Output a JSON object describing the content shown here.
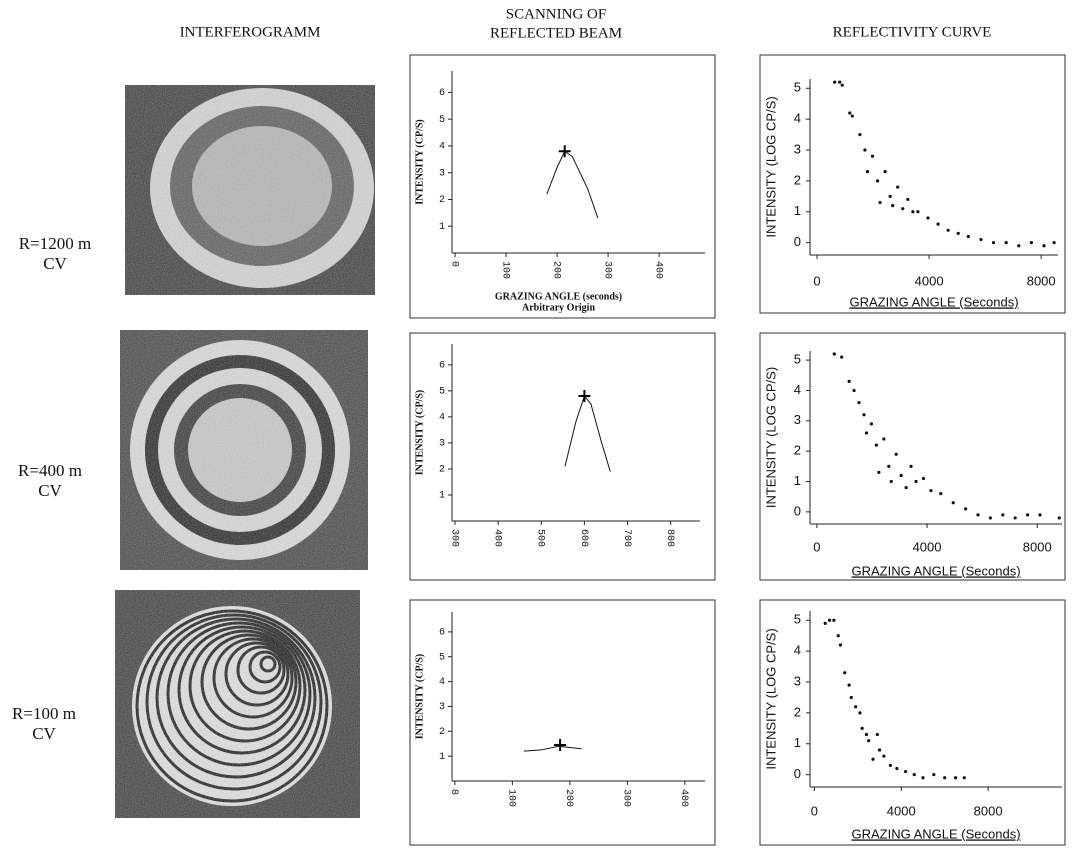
{
  "column_headers": [
    "INTERFEROGRAMM",
    "SCANNING OF",
    "REFLECTED BEAM",
    "REFLECTIVITY CURVE"
  ],
  "row_labels": [
    [
      "R=1200 m",
      "CV"
    ],
    [
      "R=400 m",
      "CV"
    ],
    [
      "R=100 m",
      "CV"
    ]
  ],
  "chart_data": [
    {
      "type": "line",
      "y_label": "INTENSITY (CP/S)",
      "x_label": "GRAZING ANGLE (seconds)",
      "subtitle": "Arbitrary Origin",
      "x": [
        180,
        200,
        215,
        230,
        260,
        280
      ],
      "values": [
        2.2,
        3.2,
        3.8,
        3.6,
        2.4,
        1.3
      ],
      "marker_x": 215,
      "marker_y": 3.8,
      "xlim": [
        -6,
        490
      ],
      "ylim": [
        0,
        6.8
      ],
      "xticks": [
        0,
        100,
        200,
        300,
        400
      ],
      "yticks": [
        1,
        2,
        3,
        4,
        5,
        6
      ]
    },
    {
      "type": "scatter",
      "y_label": "INTENSITY (LOG CP/S)",
      "x_label": "GRAZING ANGLE (Seconds)",
      "x": [
        630,
        810,
        900,
        1170,
        1260,
        1530,
        1710,
        1800,
        1980,
        2160,
        2250,
        2430,
        2610,
        2700,
        2880,
        3060,
        3240,
        3420,
        3600,
        3960,
        4320,
        4680,
        5040,
        5400,
        5850,
        6300,
        6750,
        7200,
        7650,
        8100,
        8460
      ],
      "values": [
        5.2,
        5.2,
        5.1,
        4.2,
        4.1,
        3.5,
        3.0,
        2.3,
        2.8,
        2.0,
        1.3,
        2.3,
        1.5,
        1.2,
        1.8,
        1.1,
        1.4,
        1.0,
        1.0,
        0.8,
        0.6,
        0.4,
        0.3,
        0.2,
        0.1,
        0.0,
        0.0,
        -0.1,
        0.0,
        -0.1,
        0.0
      ],
      "xlim": [
        -250,
        8600
      ],
      "ylim": [
        -0.4,
        5.3
      ],
      "xticks": [
        0,
        4000,
        8000
      ],
      "yticks": [
        0,
        1,
        2,
        3,
        4,
        5
      ]
    },
    {
      "type": "line",
      "y_label": "INTENSITY (CP/S)",
      "x": [
        555,
        580,
        600,
        615,
        640,
        660
      ],
      "values": [
        2.1,
        3.8,
        4.8,
        4.5,
        3.0,
        1.9
      ],
      "marker_x": 600,
      "marker_y": 4.8,
      "xlim": [
        293,
        868
      ],
      "ylim": [
        0,
        6.8
      ],
      "xticks": [
        300,
        400,
        500,
        600,
        700,
        800
      ],
      "yticks": [
        1,
        2,
        3,
        4,
        5,
        6
      ]
    },
    {
      "type": "scatter",
      "y_label": "INTENSITY (LOG CP/S)",
      "x_label": "GRAZING ANGLE (Seconds)",
      "x": [
        630,
        900,
        1170,
        1350,
        1530,
        1710,
        1800,
        1980,
        2160,
        2250,
        2430,
        2610,
        2700,
        2880,
        3060,
        3240,
        3420,
        3600,
        3870,
        4140,
        4500,
        4950,
        5400,
        5850,
        6300,
        6750,
        7200,
        7650,
        8100,
        8800
      ],
      "values": [
        5.2,
        5.1,
        4.3,
        4.0,
        3.6,
        3.2,
        2.6,
        2.9,
        2.2,
        1.3,
        2.4,
        1.5,
        1.0,
        1.9,
        1.2,
        0.8,
        1.5,
        1.0,
        1.1,
        0.7,
        0.6,
        0.3,
        0.1,
        -0.1,
        -0.2,
        -0.1,
        -0.2,
        -0.1,
        -0.1,
        -0.2
      ],
      "xlim": [
        -250,
        8900
      ],
      "ylim": [
        -0.4,
        5.3
      ],
      "xticks": [
        0,
        4000,
        8000
      ],
      "yticks": [
        0,
        1,
        2,
        3,
        4,
        5
      ]
    },
    {
      "type": "line",
      "y_label": "INTENSITY (CP/S)",
      "x": [
        120,
        150,
        180,
        200,
        220
      ],
      "values": [
        1.2,
        1.25,
        1.4,
        1.35,
        1.3
      ],
      "marker_x": 183,
      "marker_y": 1.45,
      "xlim": [
        -5,
        435
      ],
      "ylim": [
        0,
        6.8
      ],
      "xticks": [
        0,
        100,
        200,
        300,
        400
      ],
      "yticks": [
        1,
        2,
        3,
        4,
        5,
        6
      ]
    },
    {
      "type": "scatter",
      "y_label": "INTENSITY (LOG CP/S)",
      "x_label": "GRAZING ANGLE (Seconds)",
      "x": [
        500,
        700,
        900,
        1100,
        1200,
        1400,
        1600,
        1700,
        1900,
        2100,
        2200,
        2400,
        2500,
        2700,
        2900,
        3000,
        3200,
        3500,
        3800,
        4200,
        4600,
        5000,
        5500,
        6000,
        6500,
        6900
      ],
      "values": [
        4.9,
        5.0,
        5.0,
        4.5,
        4.2,
        3.3,
        2.9,
        2.5,
        2.2,
        2.0,
        1.5,
        1.3,
        1.1,
        0.5,
        1.3,
        0.8,
        0.6,
        0.3,
        0.2,
        0.1,
        0.0,
        -0.1,
        0.0,
        -0.1,
        -0.1,
        -0.1
      ],
      "xlim": [
        -200,
        11400
      ],
      "ylim": [
        -0.4,
        5.3
      ],
      "xticks": [
        0,
        4000,
        8000
      ],
      "yticks": [
        0,
        1,
        2,
        3,
        4,
        5
      ]
    }
  ]
}
